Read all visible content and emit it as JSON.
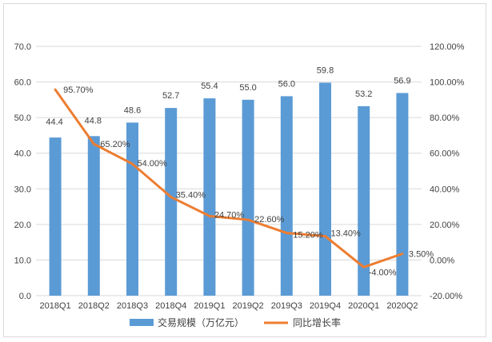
{
  "chart_data": {
    "type": "bar",
    "categories": [
      "2018Q1",
      "2018Q2",
      "2018Q3",
      "2018Q4",
      "2019Q1",
      "2019Q2",
      "2019Q3",
      "2019Q4",
      "2020Q1",
      "2020Q2"
    ],
    "series": [
      {
        "name": "交易规模（万亿元）",
        "type": "bar",
        "axis": "left",
        "color": "#5b9bd5",
        "values": [
          44.4,
          44.8,
          48.6,
          52.7,
          55.4,
          55.0,
          56.0,
          59.8,
          53.2,
          56.9
        ],
        "labels": [
          "44.4",
          "44.8",
          "48.6",
          "52.7",
          "55.4",
          "55.0",
          "56.0",
          "59.8",
          "53.2",
          "56.9"
        ]
      },
      {
        "name": "同比增长率",
        "type": "line",
        "axis": "right",
        "color": "#ed7d31",
        "values": [
          95.7,
          65.2,
          54.0,
          35.4,
          24.7,
          22.6,
          15.2,
          13.4,
          -4.0,
          3.5
        ],
        "labels": [
          "95.70%",
          "65.20%",
          "54.00%",
          "35.40%",
          "24.70%",
          "22.60%",
          "15.20%",
          "13.40%",
          "-4.00%",
          "3.50%"
        ]
      }
    ],
    "y_left": {
      "min": 0,
      "max": 70,
      "ticks": [
        0,
        10,
        20,
        30,
        40,
        50,
        60,
        70
      ],
      "tick_labels": [
        "0.0",
        "10.0",
        "20.0",
        "30.0",
        "40.0",
        "50.0",
        "60.0",
        "70.0"
      ]
    },
    "y_right": {
      "min": -20,
      "max": 120,
      "ticks": [
        -20,
        0,
        20,
        40,
        60,
        80,
        100,
        120
      ],
      "tick_labels": [
        "-20.00%",
        "0.00%",
        "20.00%",
        "40.00%",
        "60.00%",
        "80.00%",
        "100.00%",
        "120.00%"
      ]
    },
    "grid": true,
    "legend": "bottom"
  }
}
